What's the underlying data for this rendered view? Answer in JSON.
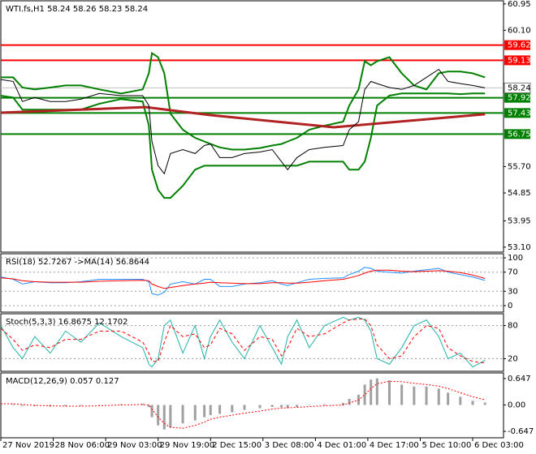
{
  "chart_data": [
    {
      "type": "line",
      "title": "WTI.fs,H1  58.24 58.26 58.23 58.24",
      "xlim": [
        0,
        163
      ],
      "ylim": [
        52.94,
        61.05
      ],
      "yticks": [
        60.95,
        {
          "value": 60.1,
          "label": "60.10"
        },
        {
          "value": 55.7,
          "label": "55.70"
        },
        54.85,
        53.95,
        {
          "value": 53.1,
          "label": "53.10"
        }
      ],
      "x": [
        0,
        4,
        7,
        11,
        16,
        21,
        26,
        32,
        39,
        46,
        48,
        49,
        51,
        53,
        55,
        59,
        63,
        66,
        68,
        71,
        75,
        79,
        84,
        88,
        91,
        93,
        96,
        100,
        105,
        111,
        113,
        116,
        118,
        120,
        122,
        126,
        130,
        134,
        138,
        142,
        145,
        149,
        153,
        157
      ],
      "series": [
        {
          "color": "#008000",
          "style": "solid",
          "width": 2,
          "values": [
            58.58,
            58.58,
            58.25,
            58.19,
            58.25,
            58.32,
            58.32,
            58.19,
            58.06,
            58.19,
            58.71,
            59.36,
            59.23,
            58.71,
            57.41,
            56.89,
            56.63,
            56.51,
            56.43,
            56.32,
            56.25,
            56.25,
            56.3,
            56.38,
            56.43,
            56.51,
            56.63,
            56.89,
            57.02,
            57.15,
            57.67,
            58.19,
            59.1,
            58.97,
            59.1,
            59.23,
            58.71,
            58.32,
            58.19,
            58.71,
            58.77,
            58.77,
            58.71,
            58.58
          ]
        },
        {
          "color": "#008000",
          "style": "solid",
          "width": 2,
          "values": [
            57.99,
            57.93,
            57.54,
            57.54,
            57.54,
            57.54,
            57.54,
            57.73,
            57.88,
            57.8,
            57.02,
            55.6,
            54.95,
            54.69,
            54.69,
            55.08,
            55.6,
            55.73,
            55.73,
            55.73,
            55.73,
            55.73,
            55.73,
            55.73,
            55.73,
            55.73,
            55.73,
            55.86,
            55.86,
            55.86,
            55.6,
            55.6,
            55.86,
            56.63,
            57.67,
            57.99,
            58.06,
            58.06,
            58.06,
            58.06,
            58.06,
            58.04,
            58.06,
            58.06
          ]
        },
        {
          "color": "#b22222",
          "style": "solid",
          "width": 3,
          "x": [
            0,
            47,
            68,
            108,
            157
          ],
          "values": [
            57.44,
            57.62,
            57.36,
            56.97,
            57.39
          ]
        },
        {
          "color": "#000000",
          "style": "solid",
          "width": 1,
          "values": [
            58.51,
            58.45,
            57.8,
            57.93,
            57.8,
            57.8,
            57.88,
            58.06,
            57.99,
            57.99,
            57.67,
            56.51,
            55.73,
            55.47,
            56.12,
            56.25,
            56.12,
            56.38,
            56.43,
            55.99,
            55.99,
            56.12,
            56.17,
            56.25,
            55.86,
            55.6,
            55.99,
            56.25,
            56.32,
            56.38,
            56.89,
            57.15,
            58.19,
            58.45,
            58.38,
            58.25,
            58.19,
            58.32,
            58.58,
            58.84,
            58.45,
            58.38,
            58.32,
            58.24
          ]
        }
      ],
      "levels": [
        {
          "value": 59.62,
          "color": "#ff0000"
        },
        {
          "value": 59.13,
          "color": "#ff0000"
        },
        {
          "value": 57.92,
          "color": "#008000"
        },
        {
          "value": 57.43,
          "color": "#008000"
        },
        {
          "value": 56.75,
          "color": "#008000"
        }
      ],
      "last_price": 58.24
    },
    {
      "type": "line",
      "title": "RSI(18) 52.7267 ->MA(14) 56.8644",
      "xlim": [
        0,
        163
      ],
      "ylim": [
        -13.6,
        108.5
      ],
      "yticks": [
        100,
        70,
        30,
        0
      ],
      "grid": true,
      "x": [
        0,
        4,
        7,
        11,
        16,
        21,
        26,
        32,
        39,
        46,
        48,
        49,
        51,
        53,
        55,
        59,
        63,
        66,
        68,
        71,
        75,
        79,
        84,
        88,
        91,
        93,
        96,
        100,
        105,
        111,
        113,
        116,
        118,
        120,
        122,
        126,
        130,
        134,
        138,
        142,
        145,
        149,
        153,
        157
      ],
      "series": [
        {
          "color": "#1e90ff",
          "style": "solid",
          "width": 1,
          "values": [
            60,
            55,
            45,
            50,
            48,
            48,
            50,
            55,
            55,
            55,
            50,
            25,
            22,
            28,
            45,
            50,
            45,
            55,
            55,
            40,
            40,
            45,
            48,
            52,
            45,
            42,
            48,
            55,
            57,
            58,
            65,
            72,
            80,
            78,
            72,
            70,
            68,
            72,
            75,
            78,
            70,
            65,
            60,
            52.73
          ]
        },
        {
          "color": "#ff0000",
          "style": "solid",
          "width": 1,
          "values": [
            58,
            56,
            52,
            50,
            49,
            49,
            49,
            51,
            52,
            53,
            52,
            45,
            40,
            36,
            38,
            42,
            45,
            47,
            49,
            48,
            47,
            46,
            46,
            48,
            48,
            47,
            47,
            49,
            52,
            55,
            58,
            63,
            68,
            72,
            74,
            74,
            72,
            71,
            72,
            73,
            72,
            69,
            64,
            56.86
          ]
        }
      ]
    },
    {
      "type": "line",
      "title": "Stoch(5,3,3) 16.8675 12.1702",
      "xlim": [
        0,
        163
      ],
      "ylim": [
        -2.9,
        101.5
      ],
      "yticks": [
        80,
        20
      ],
      "grid": true,
      "x": [
        0,
        4,
        7,
        11,
        16,
        21,
        26,
        32,
        39,
        46,
        48,
        49,
        51,
        53,
        55,
        59,
        63,
        66,
        68,
        71,
        75,
        79,
        84,
        88,
        91,
        93,
        96,
        100,
        105,
        111,
        113,
        116,
        118,
        120,
        122,
        126,
        130,
        134,
        138,
        142,
        145,
        149,
        153,
        157
      ],
      "series": [
        {
          "color": "#20b2aa",
          "style": "solid",
          "width": 1,
          "values": [
            80,
            40,
            20,
            60,
            30,
            70,
            50,
            85,
            60,
            40,
            10,
            5,
            20,
            80,
            90,
            30,
            80,
            20,
            60,
            90,
            50,
            20,
            80,
            40,
            10,
            60,
            90,
            40,
            80,
            95,
            90,
            95,
            90,
            70,
            20,
            10,
            40,
            80,
            90,
            60,
            20,
            30,
            5,
            16.87
          ]
        },
        {
          "color": "#ff0000",
          "style": "dashed",
          "width": 1,
          "values": [
            75,
            55,
            35,
            45,
            40,
            55,
            55,
            70,
            70,
            50,
            30,
            15,
            15,
            50,
            80,
            60,
            65,
            40,
            45,
            75,
            65,
            35,
            60,
            55,
            25,
            40,
            75,
            60,
            65,
            85,
            90,
            92,
            92,
            80,
            45,
            20,
            25,
            60,
            80,
            75,
            40,
            25,
            15,
            12.17
          ]
        }
      ]
    },
    {
      "type": "bar",
      "title": "MACD(12,26,9) 0.057 0.127",
      "xlim": [
        0,
        163
      ],
      "ylim": [
        -0.804,
        0.784
      ],
      "yticks": [
        0.647,
        {
          "value": 0,
          "label": "0.00"
        },
        -0.647
      ],
      "xticks": [
        {
          "value": 0,
          "label": "27 Nov 2019"
        },
        {
          "value": 17,
          "label": "28 Nov 06:00"
        },
        {
          "value": 34,
          "label": "29 Nov 03:00"
        },
        {
          "value": 51,
          "label": "29 Nov 19:00"
        },
        {
          "value": 68,
          "label": "2 Dec 15:00"
        },
        {
          "value": 85,
          "label": "3 Dec 08:00"
        },
        {
          "value": 102,
          "label": "4 Dec 01:00"
        },
        {
          "value": 119,
          "label": "4 Dec 17:00"
        },
        {
          "value": 136,
          "label": "5 Dec 10:00"
        },
        {
          "value": 153,
          "label": "6 Dec 03:00"
        }
      ],
      "x": [
        0,
        4,
        7,
        11,
        16,
        21,
        26,
        32,
        39,
        46,
        48,
        49,
        51,
        53,
        55,
        59,
        63,
        66,
        68,
        71,
        75,
        79,
        84,
        88,
        91,
        93,
        96,
        100,
        105,
        111,
        113,
        116,
        118,
        120,
        122,
        126,
        130,
        134,
        138,
        142,
        145,
        149,
        153,
        157
      ],
      "series": [
        {
          "color": "#a0a0a0",
          "style": "bar",
          "width": 3,
          "values": [
            0.05,
            0.02,
            -0.02,
            -0.03,
            -0.04,
            -0.03,
            -0.02,
            0.0,
            0.02,
            0.03,
            -0.05,
            -0.3,
            -0.5,
            -0.6,
            -0.55,
            -0.45,
            -0.38,
            -0.3,
            -0.25,
            -0.22,
            -0.18,
            -0.12,
            -0.08,
            -0.05,
            -0.06,
            -0.08,
            -0.05,
            0.0,
            0.02,
            0.05,
            0.15,
            0.25,
            0.5,
            0.62,
            0.65,
            0.6,
            0.5,
            0.45,
            0.45,
            0.4,
            0.3,
            0.2,
            0.1,
            0.057
          ]
        },
        {
          "color": "#ff0000",
          "style": "dotted",
          "width": 1,
          "values": [
            0.03,
            0.03,
            0.01,
            -0.01,
            -0.02,
            -0.03,
            -0.03,
            -0.02,
            0,
            0.01,
            0,
            -0.1,
            -0.3,
            -0.45,
            -0.55,
            -0.57,
            -0.5,
            -0.42,
            -0.35,
            -0.3,
            -0.25,
            -0.2,
            -0.15,
            -0.1,
            -0.08,
            -0.07,
            -0.06,
            -0.04,
            -0.02,
            0.0,
            0.05,
            0.12,
            0.25,
            0.4,
            0.52,
            0.58,
            0.57,
            0.53,
            0.5,
            0.46,
            0.4,
            0.3,
            0.2,
            0.127
          ]
        }
      ]
    }
  ]
}
